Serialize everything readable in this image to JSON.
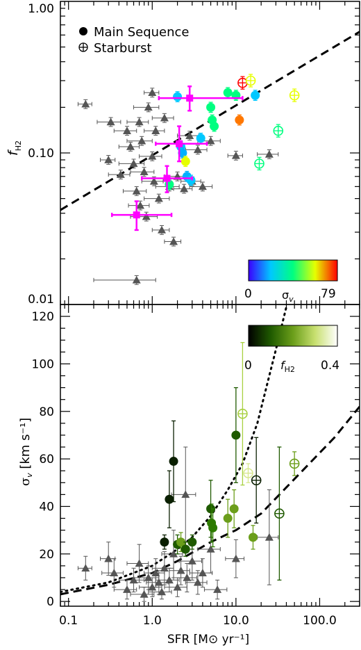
{
  "chart_data": [
    {
      "type": "scatter",
      "panel": "top",
      "xscale": "log",
      "yscale": "log",
      "xlim": [
        0.08,
        300
      ],
      "ylim": [
        0.01,
        1.0
      ],
      "ylabel": "f",
      "ylabel_sub": "H2",
      "ytick_labels": [
        "0.01",
        "0.10",
        "1.00"
      ],
      "ytick_values": [
        0.01,
        0.1,
        1.0
      ],
      "legend": {
        "placement": "top-left",
        "entries": [
          {
            "label": "Main Sequence",
            "marker": "filled-circle"
          },
          {
            "label": "Starburst",
            "marker": "circle-plus"
          }
        ]
      },
      "colorbar": {
        "min_label": "0",
        "max_label": "79",
        "label": "σ",
        "label_sub": "v",
        "colors": [
          "#3a00ff",
          "#00c8ff",
          "#00ff80",
          "#e6ff00",
          "#ff0000"
        ]
      },
      "fit_line": {
        "style": "dashed",
        "points": [
          [
            0.08,
            0.042
          ],
          [
            300,
            0.63
          ]
        ]
      },
      "series": [
        {
          "name": "comparison",
          "marker": "triangle",
          "color": "#555555",
          "points": [
            {
              "x": 0.16,
              "y": 0.21,
              "xerr": 0.03
            },
            {
              "x": 0.3,
              "y": 0.09,
              "xerr": 0.06
            },
            {
              "x": 0.32,
              "y": 0.16,
              "xerr": 0.1
            },
            {
              "x": 0.42,
              "y": 0.072,
              "xerr": 0.12
            },
            {
              "x": 0.5,
              "y": 0.14,
              "xerr": 0.15
            },
            {
              "x": 0.55,
              "y": 0.11,
              "xerr": 0.15
            },
            {
              "x": 0.6,
              "y": 0.085,
              "xerr": 0.2
            },
            {
              "x": 0.65,
              "y": 0.056,
              "xerr": 0.2
            },
            {
              "x": 0.7,
              "y": 0.16,
              "xerr": 0.2
            },
            {
              "x": 0.72,
              "y": 0.045,
              "xerr": 0.2
            },
            {
              "x": 0.75,
              "y": 0.12,
              "xerr": 0.25
            },
            {
              "x": 0.8,
              "y": 0.075,
              "xerr": 0.25
            },
            {
              "x": 0.85,
              "y": 0.038,
              "xerr": 0.3
            },
            {
              "x": 0.9,
              "y": 0.2,
              "xerr": 0.3
            },
            {
              "x": 1.0,
              "y": 0.095,
              "xerr": 0.3
            },
            {
              "x": 1.0,
              "y": 0.25,
              "xerr": 0.2
            },
            {
              "x": 1.05,
              "y": 0.065,
              "xerr": 0.3
            },
            {
              "x": 1.1,
              "y": 0.14,
              "xerr": 0.3
            },
            {
              "x": 1.2,
              "y": 0.05,
              "xerr": 0.4
            },
            {
              "x": 1.3,
              "y": 0.031,
              "xerr": 0.3
            },
            {
              "x": 1.4,
              "y": 0.17,
              "xerr": 0.4
            },
            {
              "x": 1.6,
              "y": 0.06,
              "xerr": 0.5
            },
            {
              "x": 1.8,
              "y": 0.026,
              "xerr": 0.4
            },
            {
              "x": 2.0,
              "y": 0.07,
              "xerr": 0.6
            },
            {
              "x": 2.4,
              "y": 0.058,
              "xerr": 0.6
            },
            {
              "x": 2.8,
              "y": 0.13,
              "xerr": 0.8
            },
            {
              "x": 3.0,
              "y": 0.065,
              "xerr": 0.8
            },
            {
              "x": 3.5,
              "y": 0.105,
              "xerr": 1.0
            },
            {
              "x": 4.0,
              "y": 0.06,
              "xerr": 1.2
            },
            {
              "x": 5.0,
              "y": 0.12,
              "xerr": 1.5
            },
            {
              "x": 10.0,
              "y": 0.096,
              "xerr": 2.0
            },
            {
              "x": 25.0,
              "y": 0.098,
              "xerr": 7.0
            },
            {
              "x": 0.65,
              "y": 0.0145,
              "xerr": 0.45
            }
          ]
        },
        {
          "name": "main-sequence",
          "marker": "filled-circle",
          "points": [
            {
              "x": 2.0,
              "y": 0.235,
              "c": "#00c8ff"
            },
            {
              "x": 2.2,
              "y": 0.11,
              "c": "#00c8ff"
            },
            {
              "x": 2.3,
              "y": 0.1,
              "c": "#00b0ff"
            },
            {
              "x": 2.6,
              "y": 0.07,
              "c": "#00b0ff"
            },
            {
              "x": 2.9,
              "y": 0.066,
              "c": "#00c8ff"
            },
            {
              "x": 3.8,
              "y": 0.125,
              "c": "#00c8ff"
            },
            {
              "x": 5.0,
              "y": 0.2,
              "c": "#00ff80"
            },
            {
              "x": 5.2,
              "y": 0.165,
              "c": "#00ff80"
            },
            {
              "x": 5.5,
              "y": 0.15,
              "c": "#00ff80"
            },
            {
              "x": 8.0,
              "y": 0.25,
              "c": "#00ff80"
            },
            {
              "x": 10.0,
              "y": 0.24,
              "c": "#00ff80"
            },
            {
              "x": 11.0,
              "y": 0.165,
              "c": "#ff7700"
            },
            {
              "x": 2.5,
              "y": 0.088,
              "c": "#e6ff00"
            },
            {
              "x": 1.6,
              "y": 0.062,
              "c": "#00ff80"
            },
            {
              "x": 17.0,
              "y": 0.24,
              "c": "#00c8ff"
            }
          ]
        },
        {
          "name": "starburst",
          "marker": "circle-plus",
          "points": [
            {
              "x": 12.0,
              "y": 0.29,
              "c": "#ff0000"
            },
            {
              "x": 15.0,
              "y": 0.3,
              "c": "#e6ff00"
            },
            {
              "x": 19.0,
              "y": 0.085,
              "c": "#00ff80"
            },
            {
              "x": 32.0,
              "y": 0.14,
              "c": "#00ff80"
            },
            {
              "x": 50.0,
              "y": 0.24,
              "c": "#e6ff00"
            }
          ]
        },
        {
          "name": "binned",
          "marker": "square",
          "color": "#ff00ff",
          "points": [
            {
              "x": 0.65,
              "y": 0.039,
              "xlo": 0.33,
              "xhi": 1.7,
              "ylo": 0.031,
              "yhi": 0.048
            },
            {
              "x": 1.5,
              "y": 0.068,
              "xlo": 0.75,
              "xhi": 3.0,
              "ylo": 0.055,
              "yhi": 0.082
            },
            {
              "x": 2.1,
              "y": 0.115,
              "xlo": 1.1,
              "xhi": 4.5,
              "ylo": 0.088,
              "yhi": 0.15
            },
            {
              "x": 2.8,
              "y": 0.23,
              "xlo": 1.2,
              "xhi": 12.0,
              "ylo": 0.19,
              "yhi": 0.275
            }
          ]
        }
      ]
    },
    {
      "type": "scatter",
      "panel": "bottom",
      "xscale": "log",
      "yscale": "linear",
      "xlim": [
        0.08,
        300
      ],
      "ylim": [
        -2,
        125
      ],
      "xlabel": "SFR [M⊙ yr⁻¹]",
      "ylabel": "σ",
      "ylabel_sub": "v",
      "ylabel_units": " [km s⁻¹]",
      "ytick_values": [
        0,
        20,
        40,
        60,
        80,
        100,
        120
      ],
      "ytick_labels": [
        "0",
        "20",
        "40",
        "60",
        "80",
        "100",
        "120"
      ],
      "xtick_values": [
        0.1,
        1.0,
        10.0,
        100.0
      ],
      "xtick_labels": [
        "0.1",
        "1.0",
        "10.0",
        "100.0"
      ],
      "colorbar": {
        "min_label": "0",
        "max_label": "0.4",
        "label": "f",
        "label_sub": "H2",
        "colors": [
          "#000000",
          "#1f5a00",
          "#6b9e1a",
          "#c8e070",
          "#ffffff"
        ]
      },
      "curves": [
        {
          "name": "dotted",
          "style": "dotted",
          "points": [
            [
              0.08,
              4
            ],
            [
              0.3,
              8
            ],
            [
              1,
              15
            ],
            [
              2,
              22
            ],
            [
              3,
              27
            ],
            [
              5,
              36
            ],
            [
              8,
              47
            ],
            [
              12,
              58
            ],
            [
              18,
              75
            ],
            [
              25,
              95
            ],
            [
              30,
              106
            ],
            [
              40,
              124
            ]
          ]
        },
        {
          "name": "dashed",
          "style": "dashed",
          "points": [
            [
              0.08,
              3
            ],
            [
              0.3,
              7
            ],
            [
              1,
              12
            ],
            [
              2,
              17
            ],
            [
              5,
              25
            ],
            [
              10,
              30
            ],
            [
              20,
              37
            ],
            [
              40,
              48
            ],
            [
              80,
              59
            ],
            [
              150,
              69
            ],
            [
              300,
              82
            ]
          ]
        }
      ],
      "series": [
        {
          "name": "comparison",
          "marker": "triangle",
          "color": "#555555",
          "points": [
            {
              "x": 0.16,
              "y": 14,
              "xerr": 0.03,
              "yerr": 5
            },
            {
              "x": 0.3,
              "y": 18,
              "xerr": 0.06,
              "yerr": 7
            },
            {
              "x": 0.35,
              "y": 12,
              "xerr": 0.1,
              "yerr": 6
            },
            {
              "x": 0.5,
              "y": 5,
              "xerr": 0.15,
              "yerr": 4
            },
            {
              "x": 0.6,
              "y": 9,
              "xerr": 0.2,
              "yerr": 5
            },
            {
              "x": 0.7,
              "y": 16,
              "xerr": 0.2,
              "yerr": 8
            },
            {
              "x": 0.8,
              "y": 3,
              "xerr": 0.25,
              "yerr": 3
            },
            {
              "x": 0.9,
              "y": 10,
              "xerr": 0.3,
              "yerr": 5
            },
            {
              "x": 1.0,
              "y": 6,
              "xerr": 0.3,
              "yerr": 4
            },
            {
              "x": 1.1,
              "y": 12,
              "xerr": 0.3,
              "yerr": 6
            },
            {
              "x": 1.2,
              "y": 8,
              "xerr": 0.35,
              "yerr": 5
            },
            {
              "x": 1.3,
              "y": 4,
              "xerr": 0.4,
              "yerr": 3
            },
            {
              "x": 1.4,
              "y": 14,
              "xerr": 0.4,
              "yerr": 7
            },
            {
              "x": 1.6,
              "y": 9,
              "xerr": 0.5,
              "yerr": 5
            },
            {
              "x": 1.8,
              "y": 20,
              "xerr": 0.5,
              "yerr": 10
            },
            {
              "x": 2.0,
              "y": 6,
              "xerr": 0.6,
              "yerr": 4
            },
            {
              "x": 2.2,
              "y": 13,
              "xerr": 0.6,
              "yerr": 6
            },
            {
              "x": 2.5,
              "y": 45,
              "xerr": 0.8,
              "yerr": 20
            },
            {
              "x": 2.6,
              "y": 10,
              "xerr": 0.8,
              "yerr": 6
            },
            {
              "x": 3.0,
              "y": 17,
              "xerr": 0.9,
              "yerr": 8
            },
            {
              "x": 3.5,
              "y": 8,
              "xerr": 1.0,
              "yerr": 5
            },
            {
              "x": 4.0,
              "y": 12,
              "xerr": 1.2,
              "yerr": 6
            },
            {
              "x": 5.0,
              "y": 22,
              "xerr": 1.5,
              "yerr": 10
            },
            {
              "x": 6.0,
              "y": 5,
              "xerr": 1.8,
              "yerr": 4
            },
            {
              "x": 10.0,
              "y": 18,
              "xerr": 2.5,
              "yerr": 8
            },
            {
              "x": 25.0,
              "y": 27,
              "xerr": 7.0,
              "yerr": 20
            }
          ]
        },
        {
          "name": "main-sequence",
          "marker": "filled-circle",
          "points": [
            {
              "x": 1.4,
              "y": 25,
              "yerr": 3,
              "c": "#0a1f00"
            },
            {
              "x": 1.6,
              "y": 43,
              "yerr": 12,
              "c": "#0a1f00"
            },
            {
              "x": 1.8,
              "y": 59,
              "yerr": 17,
              "c": "#0a1f00"
            },
            {
              "x": 2.0,
              "y": 24,
              "yerr": 4,
              "c": "#1f5a00"
            },
            {
              "x": 2.2,
              "y": 25,
              "yerr": 4,
              "c": "#6b9e1a"
            },
            {
              "x": 2.5,
              "y": 22,
              "yerr": 3,
              "c": "#1f5a00"
            },
            {
              "x": 3.0,
              "y": 25,
              "yerr": 3,
              "c": "#1f5a00"
            },
            {
              "x": 5.0,
              "y": 39,
              "yerr": 12,
              "c": "#1f5a00"
            },
            {
              "x": 5.1,
              "y": 33,
              "yerr": 8,
              "c": "#2d7a00"
            },
            {
              "x": 5.3,
              "y": 31,
              "yerr": 8,
              "c": "#2d7a00"
            },
            {
              "x": 8.0,
              "y": 35,
              "yerr": 8,
              "c": "#6b9e1a"
            },
            {
              "x": 9.5,
              "y": 39,
              "yerr": 8,
              "c": "#6b9e1a"
            },
            {
              "x": 10.0,
              "y": 70,
              "yerr": 20,
              "c": "#1f5a00"
            },
            {
              "x": 16.0,
              "y": 27,
              "yerr": 5,
              "c": "#6b9e1a"
            }
          ]
        },
        {
          "name": "starburst",
          "marker": "circle-plus",
          "points": [
            {
              "x": 12.0,
              "y": 79,
              "yerr": 30,
              "c": "#a8d040"
            },
            {
              "x": 14.0,
              "y": 54,
              "yerr": 4,
              "c": "#d8e890"
            },
            {
              "x": 17.5,
              "y": 51,
              "yerr": 18,
              "c": "#0a1f00"
            },
            {
              "x": 33.0,
              "y": 37,
              "yerr": 28,
              "c": "#1f5a00"
            },
            {
              "x": 50.0,
              "y": 58,
              "yerr": 5,
              "c": "#6b9e1a"
            }
          ]
        }
      ]
    }
  ]
}
